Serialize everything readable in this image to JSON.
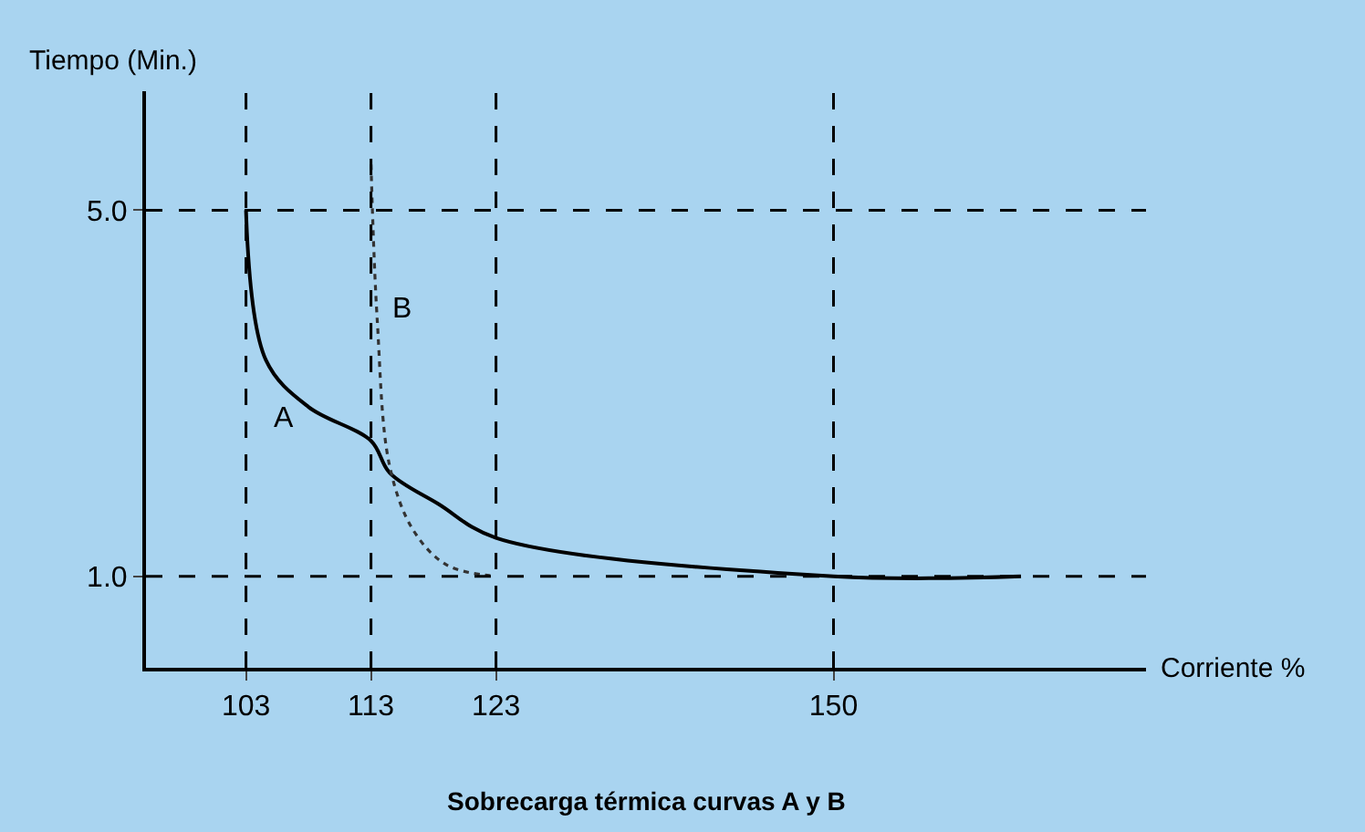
{
  "chart_data": {
    "type": "line",
    "title": "Sobrecarga térmica curvas A y B",
    "xlabel": "Corriente %",
    "ylabel": "Tiempo (Min.)",
    "xlim": [
      95,
      175
    ],
    "xticks": [
      103,
      113,
      123,
      150
    ],
    "ylim": [
      0,
      6.3
    ],
    "yticks": [
      {
        "value": 1,
        "label": "1.0"
      },
      {
        "value": 5,
        "label": "5.0"
      }
    ],
    "series": [
      {
        "name": "A",
        "color": "#000000",
        "line_style": "solid",
        "x": [
          103,
          104.6,
          108,
          113,
          114.5,
          118.4,
          123,
          150,
          165
        ],
        "values": [
          5.0,
          3.36,
          2.85,
          2.48,
          2.13,
          1.79,
          1.42,
          1.0,
          1.0
        ]
      },
      {
        "name": "B",
        "color": "#333333",
        "line_style": "dotted",
        "x": [
          113,
          113.5,
          114.5,
          116.4,
          119.1,
          123
        ],
        "values": [
          5.5,
          3.8,
          2.2,
          1.5,
          1.12,
          1.0
        ]
      }
    ],
    "ref_lines": [
      {
        "axis": "x",
        "value": 103,
        "color": "#000000",
        "line_style": "dashed"
      },
      {
        "axis": "x",
        "value": 113,
        "color": "#000000",
        "line_style": "dashed"
      },
      {
        "axis": "x",
        "value": 123,
        "color": "#000000",
        "line_style": "dashed"
      },
      {
        "axis": "x",
        "value": 150,
        "color": "#000000",
        "line_style": "dashed"
      },
      {
        "axis": "y",
        "value": 1,
        "color": "#000000",
        "line_style": "dashed"
      },
      {
        "axis": "y",
        "value": 5,
        "color": "#000000",
        "line_style": "dashed"
      }
    ],
    "grid": false,
    "legend": false,
    "marker": "none"
  }
}
